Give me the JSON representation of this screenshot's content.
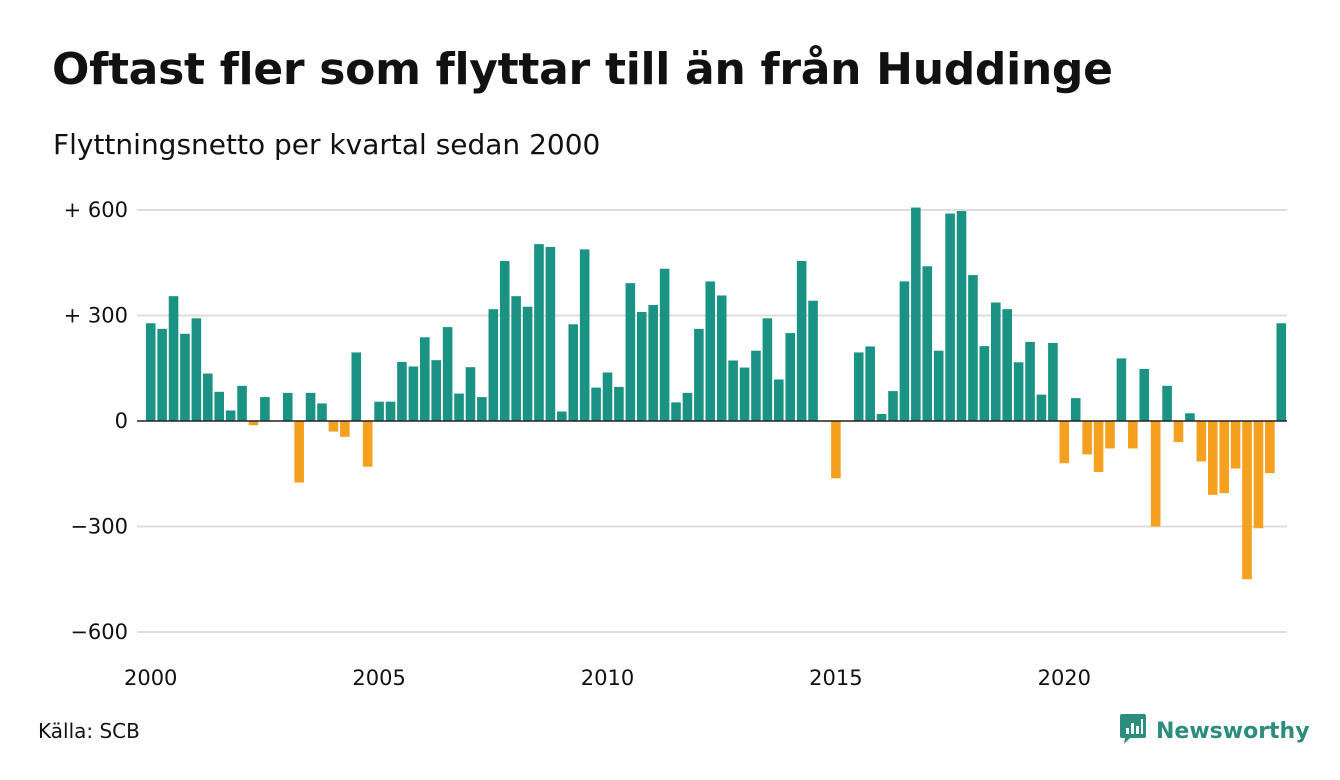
{
  "title": "Oftast fler som flyttar till än från Huddinge",
  "subtitle": "Flyttningsnetto per kvartal sedan 2000",
  "source": "Källa: SCB",
  "brand": {
    "name": "Newsworthy",
    "icon": "newsworthy-logo-icon",
    "color": "#2c8c7e"
  },
  "chart_data": {
    "type": "bar",
    "title": "Oftast fler som flyttar till än från Huddinge",
    "subtitle": "Flyttningsnetto per kvartal sedan 2000",
    "xlabel": "",
    "ylabel": "",
    "ylim": [
      -650,
      620
    ],
    "y_ticks": [
      {
        "value": 600,
        "label": "+ 600"
      },
      {
        "value": 300,
        "label": "+ 300"
      },
      {
        "value": 0,
        "label": "0"
      },
      {
        "value": -300,
        "label": "−300"
      },
      {
        "value": -600,
        "label": "−600"
      }
    ],
    "x_ticks": [
      {
        "value": 2000,
        "label": "2000"
      },
      {
        "value": 2005,
        "label": "2005"
      },
      {
        "value": 2010,
        "label": "2010"
      },
      {
        "value": 2015,
        "label": "2015"
      },
      {
        "value": 2020,
        "label": "2020"
      }
    ],
    "grid": true,
    "legend": "none",
    "colors": {
      "positive": "#1a9384",
      "negative": "#f5a01f",
      "grid": "#dddddd",
      "zero_line": "#222222"
    },
    "categories": [
      "2000 Q1",
      "2000 Q2",
      "2000 Q3",
      "2000 Q4",
      "2001 Q1",
      "2001 Q2",
      "2001 Q3",
      "2001 Q4",
      "2002 Q1",
      "2002 Q2",
      "2002 Q3",
      "2002 Q4",
      "2003 Q1",
      "2003 Q2",
      "2003 Q3",
      "2003 Q4",
      "2004 Q1",
      "2004 Q2",
      "2004 Q3",
      "2004 Q4",
      "2005 Q1",
      "2005 Q2",
      "2005 Q3",
      "2005 Q4",
      "2006 Q1",
      "2006 Q2",
      "2006 Q3",
      "2006 Q4",
      "2007 Q1",
      "2007 Q2",
      "2007 Q3",
      "2007 Q4",
      "2008 Q1",
      "2008 Q2",
      "2008 Q3",
      "2008 Q4",
      "2009 Q1",
      "2009 Q2",
      "2009 Q3",
      "2009 Q4",
      "2010 Q1",
      "2010 Q2",
      "2010 Q3",
      "2010 Q4",
      "2011 Q1",
      "2011 Q2",
      "2011 Q3",
      "2011 Q4",
      "2012 Q1",
      "2012 Q2",
      "2012 Q3",
      "2012 Q4",
      "2013 Q1",
      "2013 Q2",
      "2013 Q3",
      "2013 Q4",
      "2014 Q1",
      "2014 Q2",
      "2014 Q3",
      "2014 Q4",
      "2015 Q1",
      "2015 Q2",
      "2015 Q3",
      "2015 Q4",
      "2016 Q1",
      "2016 Q2",
      "2016 Q3",
      "2016 Q4",
      "2017 Q1",
      "2017 Q2",
      "2017 Q3",
      "2017 Q4",
      "2018 Q1",
      "2018 Q2",
      "2018 Q3",
      "2018 Q4",
      "2019 Q1",
      "2019 Q2",
      "2019 Q3",
      "2019 Q4",
      "2020 Q1",
      "2020 Q2",
      "2020 Q3",
      "2020 Q4",
      "2021 Q1",
      "2021 Q2",
      "2021 Q3",
      "2021 Q4",
      "2022 Q1",
      "2022 Q2",
      "2022 Q3",
      "2022 Q4",
      "2023 Q1",
      "2023 Q2",
      "2023 Q3",
      "2023 Q4",
      "2024 Q1",
      "2024 Q2",
      "2024 Q3",
      "2024 Q4"
    ],
    "values": [
      278,
      262,
      355,
      248,
      292,
      135,
      83,
      30,
      100,
      -12,
      68,
      0,
      80,
      -175,
      80,
      50,
      -30,
      -45,
      195,
      -130,
      55,
      55,
      168,
      155,
      238,
      173,
      267,
      78,
      153,
      68,
      318,
      455,
      355,
      325,
      503,
      495,
      27,
      275,
      488,
      95,
      138,
      97,
      392,
      310,
      330,
      433,
      53,
      80,
      262,
      397,
      357,
      172,
      152,
      200,
      292,
      118,
      250,
      455,
      342,
      0,
      -163,
      0,
      195,
      212,
      20,
      85,
      397,
      607,
      440,
      200,
      590,
      597,
      415,
      213,
      337,
      318,
      167,
      225,
      75,
      222,
      -120,
      65,
      -95,
      -145,
      -78,
      178,
      -78,
      148,
      -300,
      100,
      -60,
      22,
      -115,
      -210,
      -205,
      -135,
      -450,
      -305,
      -148,
      278
    ]
  }
}
